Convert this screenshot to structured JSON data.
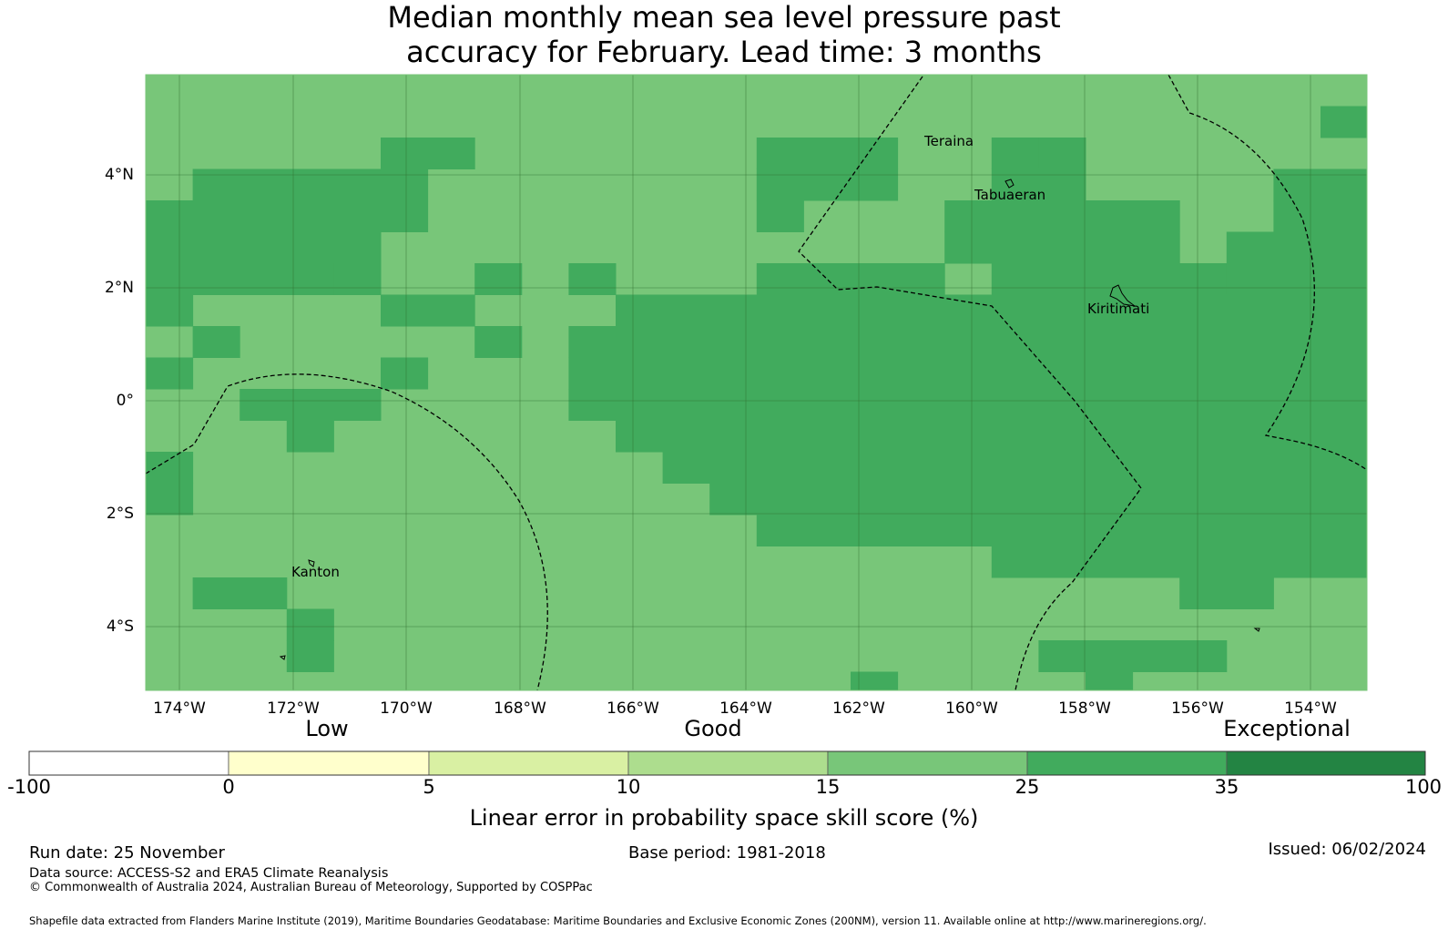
{
  "title": {
    "line1": "Median monthly mean sea level pressure past",
    "line2": "accuracy for February. Lead time: 3 months"
  },
  "map": {
    "lat_labels": [
      "4°N",
      "2°N",
      "0°",
      "2°S",
      "4°S"
    ],
    "lon_labels": [
      "174°W",
      "172°W",
      "170°W",
      "168°W",
      "166°W",
      "164°W",
      "162°W",
      "160°W",
      "158°W",
      "156°W",
      "154°W"
    ],
    "places": [
      "Teraina",
      "Tabuaeran",
      "Kiritimati",
      "Kanton"
    ],
    "colors": {
      "cat_15_25": "#78c679",
      "cat_25_35": "#41ab5d",
      "grid": "#2f6e2f",
      "boundary": "#000000"
    }
  },
  "colorbar": {
    "categories": [
      "Low",
      "Good",
      "Exceptional"
    ],
    "ticks": [
      "-100",
      "0",
      "5",
      "10",
      "15",
      "25",
      "35",
      "100"
    ],
    "colors": [
      "#ffffff",
      "#ffffcc",
      "#d9f0a3",
      "#addd8e",
      "#78c679",
      "#41ab5d",
      "#238443"
    ],
    "title": "Linear error in probability space skill score (%)"
  },
  "footer": {
    "run_date": "Run date: 25 November",
    "base_period": "Base period: 1981-2018",
    "issued": "Issued: 06/02/2024",
    "data_source": "Data source: ACCESS-S2 and ERA5 Climate Reanalysis",
    "copyright": "© Commonwealth of Australia 2024, Australian Bureau of Meteorology, Supported by COSPPac",
    "shapefile": "Shapefile data extracted from Flanders Marine Institute (2019), Maritime Boundaries Geodatabase: Maritime Boundaries and Exclusive Economic Zones (200NM), version 11. Available online at http://www.marineregions.org/."
  }
}
